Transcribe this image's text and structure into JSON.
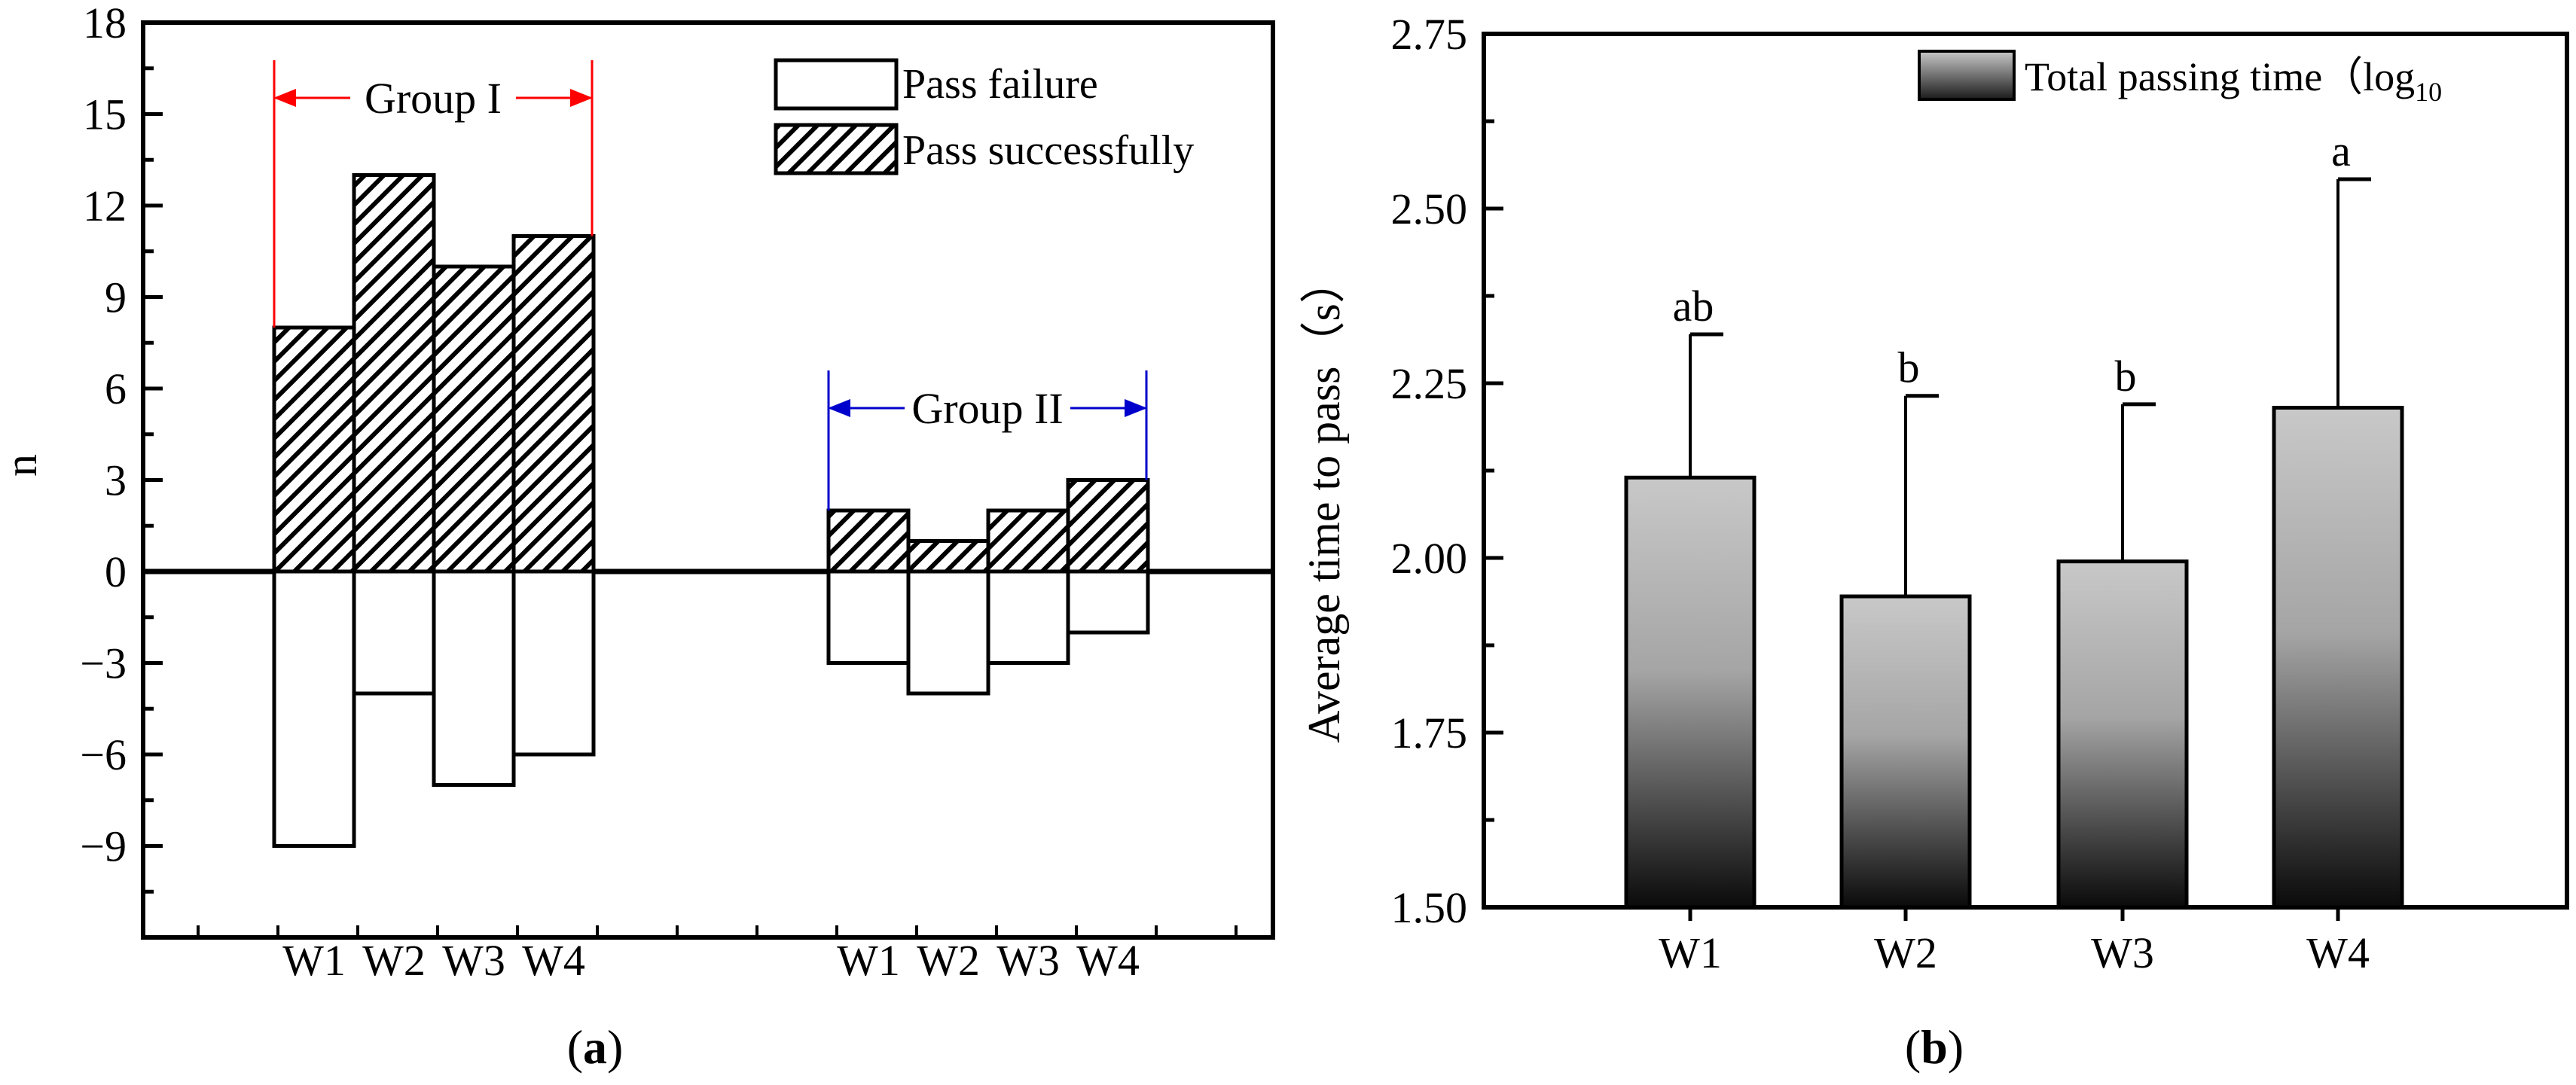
{
  "figure": {
    "panel_a_label": "a",
    "panel_b_label": "b"
  },
  "chart_data": [
    {
      "type": "bar",
      "panel": "a",
      "ylabel": "n",
      "ylim": [
        -12,
        18
      ],
      "yticks": [
        -9,
        -6,
        -3,
        0,
        3,
        6,
        9,
        12,
        15,
        18
      ],
      "ytick_labels": [
        "−9",
        "−6",
        "−3",
        "0",
        "3",
        "6",
        "9",
        "12",
        "15",
        "18"
      ],
      "groups": [
        {
          "name": "Group  I",
          "color": "#ff0000",
          "categories": [
            "W1",
            "W2",
            "W3",
            "W4"
          ],
          "pass_successfully": [
            8,
            13,
            10,
            11
          ],
          "pass_failure": [
            -9,
            -4,
            -7,
            -6
          ]
        },
        {
          "name": "Group  II",
          "color": "#0000cc",
          "categories": [
            "W1",
            "W2",
            "W3",
            "W4"
          ],
          "pass_successfully": [
            2,
            1,
            2,
            3
          ],
          "pass_failure": [
            -3,
            -4,
            -3,
            -2
          ]
        }
      ],
      "legend": {
        "position": "top-right",
        "entries": [
          "Pass failure",
          "Pass successfully"
        ]
      }
    },
    {
      "type": "bar",
      "panel": "b",
      "ylabel": "Average time to pass（s）",
      "ylim": [
        1.5,
        2.75
      ],
      "yticks": [
        1.5,
        1.75,
        2.0,
        2.25,
        2.5,
        2.75
      ],
      "ytick_labels": [
        "1.50",
        "1.75",
        "2.00",
        "2.25",
        "2.50",
        "2.75"
      ],
      "categories": [
        "W1",
        "W2",
        "W3",
        "W4"
      ],
      "values": [
        2.115,
        1.945,
        1.995,
        2.215
      ],
      "errors": [
        0.205,
        0.287,
        0.225,
        0.327
      ],
      "significance": [
        "ab",
        "b",
        "b",
        "a"
      ],
      "legend": {
        "position": "top-right",
        "label": "Total passing time（log",
        "subscript": "10"
      }
    }
  ]
}
